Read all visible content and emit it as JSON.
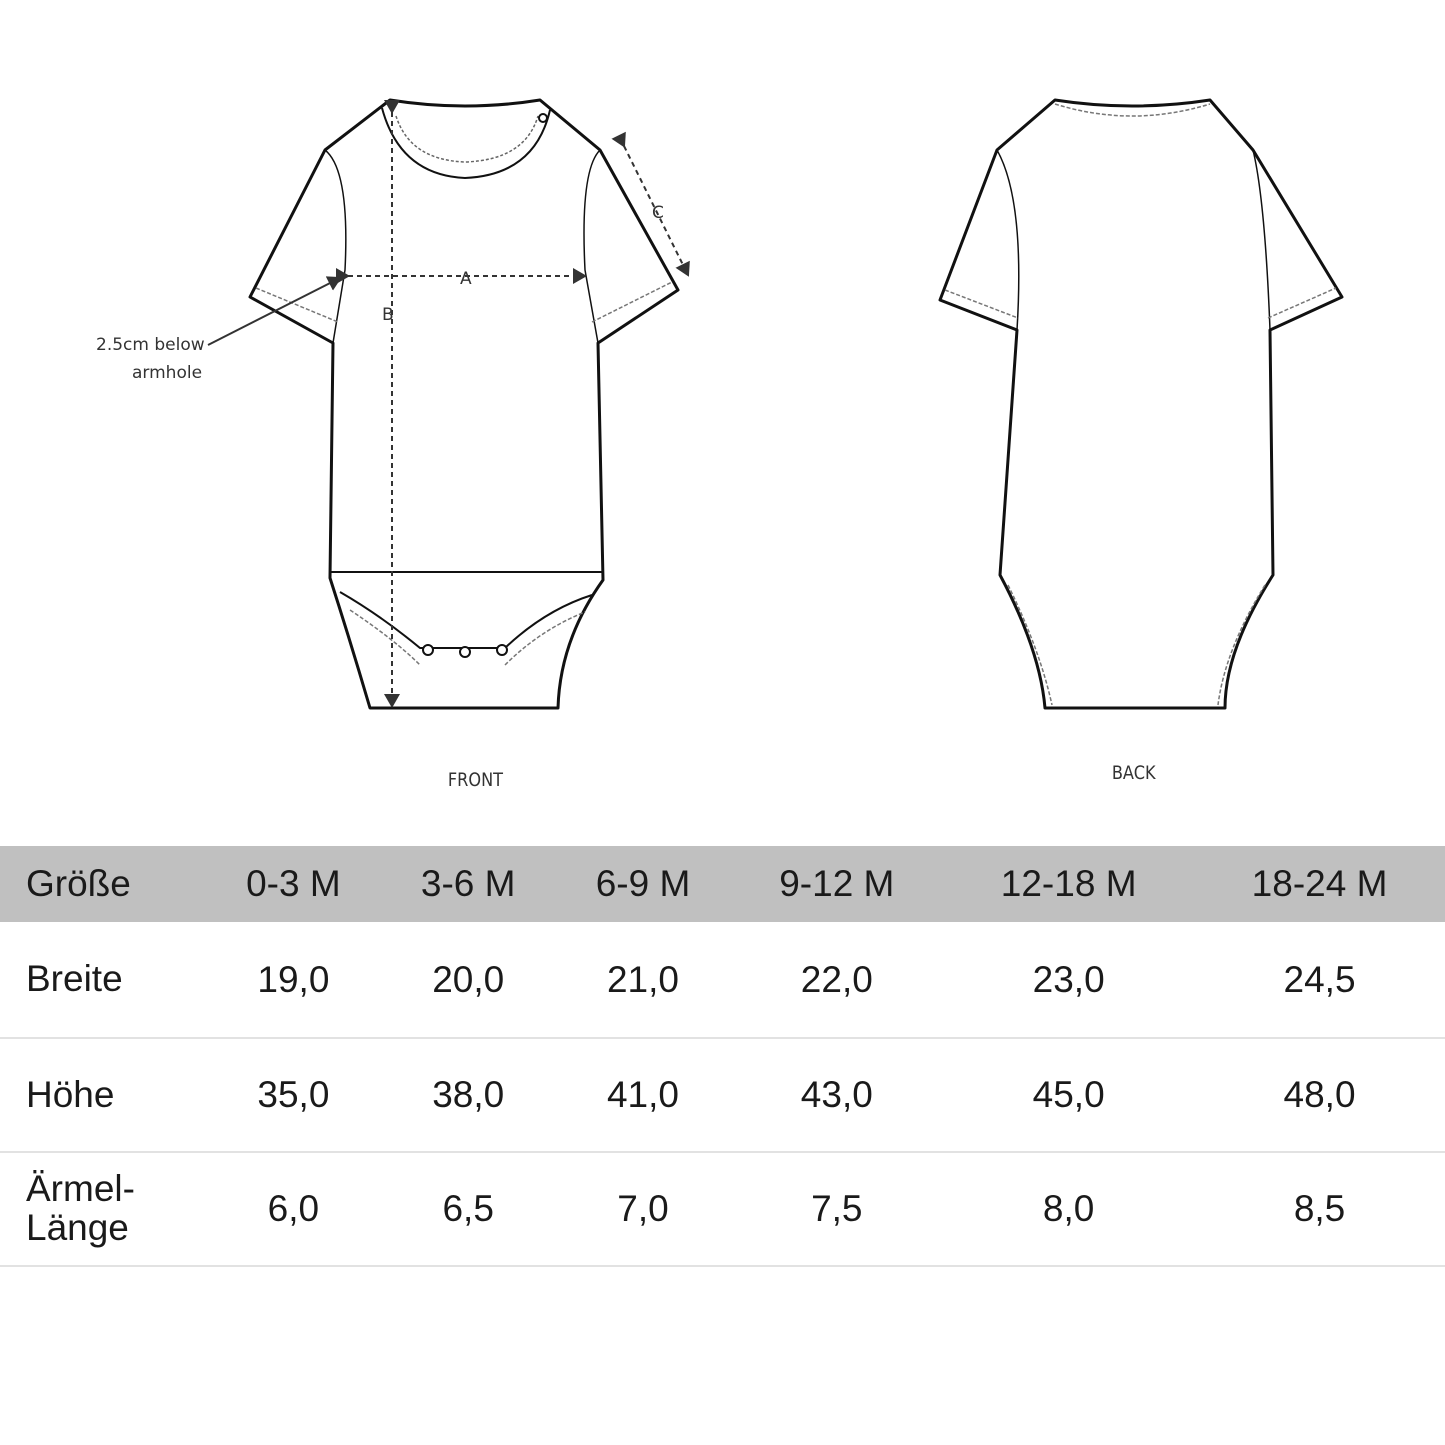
{
  "diagram": {
    "front_label": "FRONT",
    "back_label": "BACK",
    "measure_a": "A",
    "measure_b": "B",
    "measure_c": "C",
    "annotation_line1": "2.5cm below",
    "annotation_line2": "armhole"
  },
  "table": {
    "header_label": "Größe",
    "sizes": [
      "0-3 M",
      "3-6 M",
      "6-9 M",
      "9-12 M",
      "12-18 M",
      "18-24 M"
    ],
    "rows": [
      {
        "label": "Breite",
        "values": [
          "19,0",
          "20,0",
          "21,0",
          "22,0",
          "23,0",
          "24,5"
        ]
      },
      {
        "label": "Höhe",
        "values": [
          "35,0",
          "38,0",
          "41,0",
          "43,0",
          "45,0",
          "48,0"
        ]
      },
      {
        "label": "Ärmel-\nLänge",
        "values": [
          "6,0",
          "6,5",
          "7,0",
          "7,5",
          "8,0",
          "8,5"
        ]
      }
    ],
    "header_bg": "#c0c0c0"
  }
}
